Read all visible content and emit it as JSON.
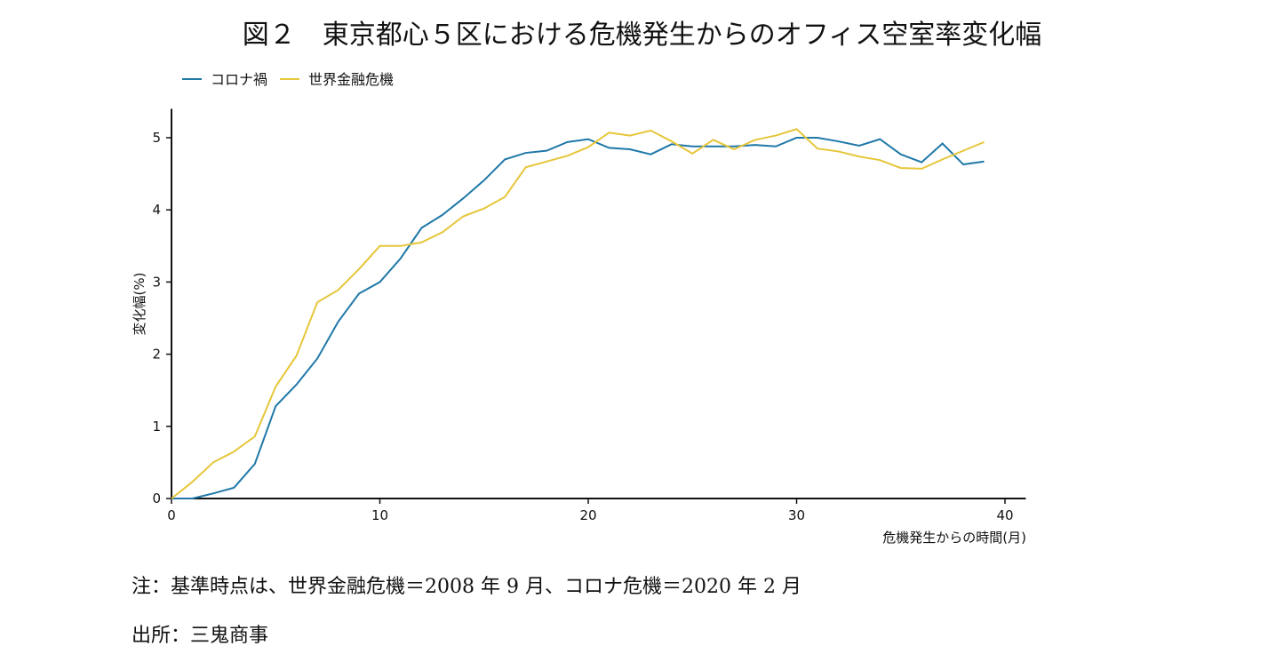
{
  "title": "図２　東京都心５区における危機発生からのオフィス空室率変化幅",
  "chart_data": {
    "type": "line",
    "title": "図２　東京都心５区における危機発生からのオフィス空室率変化幅",
    "xlabel": "危機発生からの時間(月)",
    "ylabel": "変化幅(%)",
    "xlim": [
      0,
      41
    ],
    "ylim": [
      0,
      5.4
    ],
    "xticks": [
      0,
      10,
      20,
      30,
      40
    ],
    "yticks": [
      0,
      1,
      2,
      3,
      4,
      5
    ],
    "grid": false,
    "legend_placement": "top-left",
    "x": [
      0,
      1,
      2,
      3,
      4,
      5,
      6,
      7,
      8,
      9,
      10,
      11,
      12,
      13,
      14,
      15,
      16,
      17,
      18,
      19,
      20,
      21,
      22,
      23,
      24,
      25,
      26,
      27,
      28,
      29,
      30,
      31,
      32,
      33,
      34,
      35,
      36,
      37,
      38,
      39
    ],
    "series": [
      {
        "name": "コロナ禍",
        "color": "#1f78a8",
        "values": [
          0,
          0,
          0.07,
          0.15,
          0.48,
          1.28,
          1.58,
          1.94,
          2.45,
          2.84,
          3.0,
          3.33,
          3.75,
          3.93,
          4.16,
          4.41,
          4.7,
          4.79,
          4.82,
          4.94,
          4.98,
          4.86,
          4.84,
          4.77,
          4.91,
          4.88,
          4.88,
          4.88,
          4.9,
          4.88,
          5.0,
          5.0,
          4.95,
          4.89,
          4.98,
          4.77,
          4.66,
          4.92,
          4.63,
          4.67
        ]
      },
      {
        "name": "世界金融危機",
        "color": "#e6c63a",
        "values": [
          0,
          0.23,
          0.5,
          0.65,
          0.86,
          1.55,
          1.98,
          2.72,
          2.89,
          3.18,
          3.5,
          3.5,
          3.55,
          3.69,
          3.91,
          4.02,
          4.18,
          4.59,
          4.67,
          4.75,
          4.87,
          5.07,
          5.03,
          5.1,
          4.95,
          4.78,
          4.97,
          4.84,
          4.97,
          5.03,
          5.12,
          4.85,
          4.81,
          4.74,
          4.69,
          4.58,
          4.57,
          4.7,
          4.82,
          4.94
        ]
      }
    ]
  },
  "notes": {
    "note": "注：基準時点は、世界金融危機＝2008 年 9 月、コロナ危機＝2020 年 2 月",
    "source": "出所：三鬼商事"
  }
}
